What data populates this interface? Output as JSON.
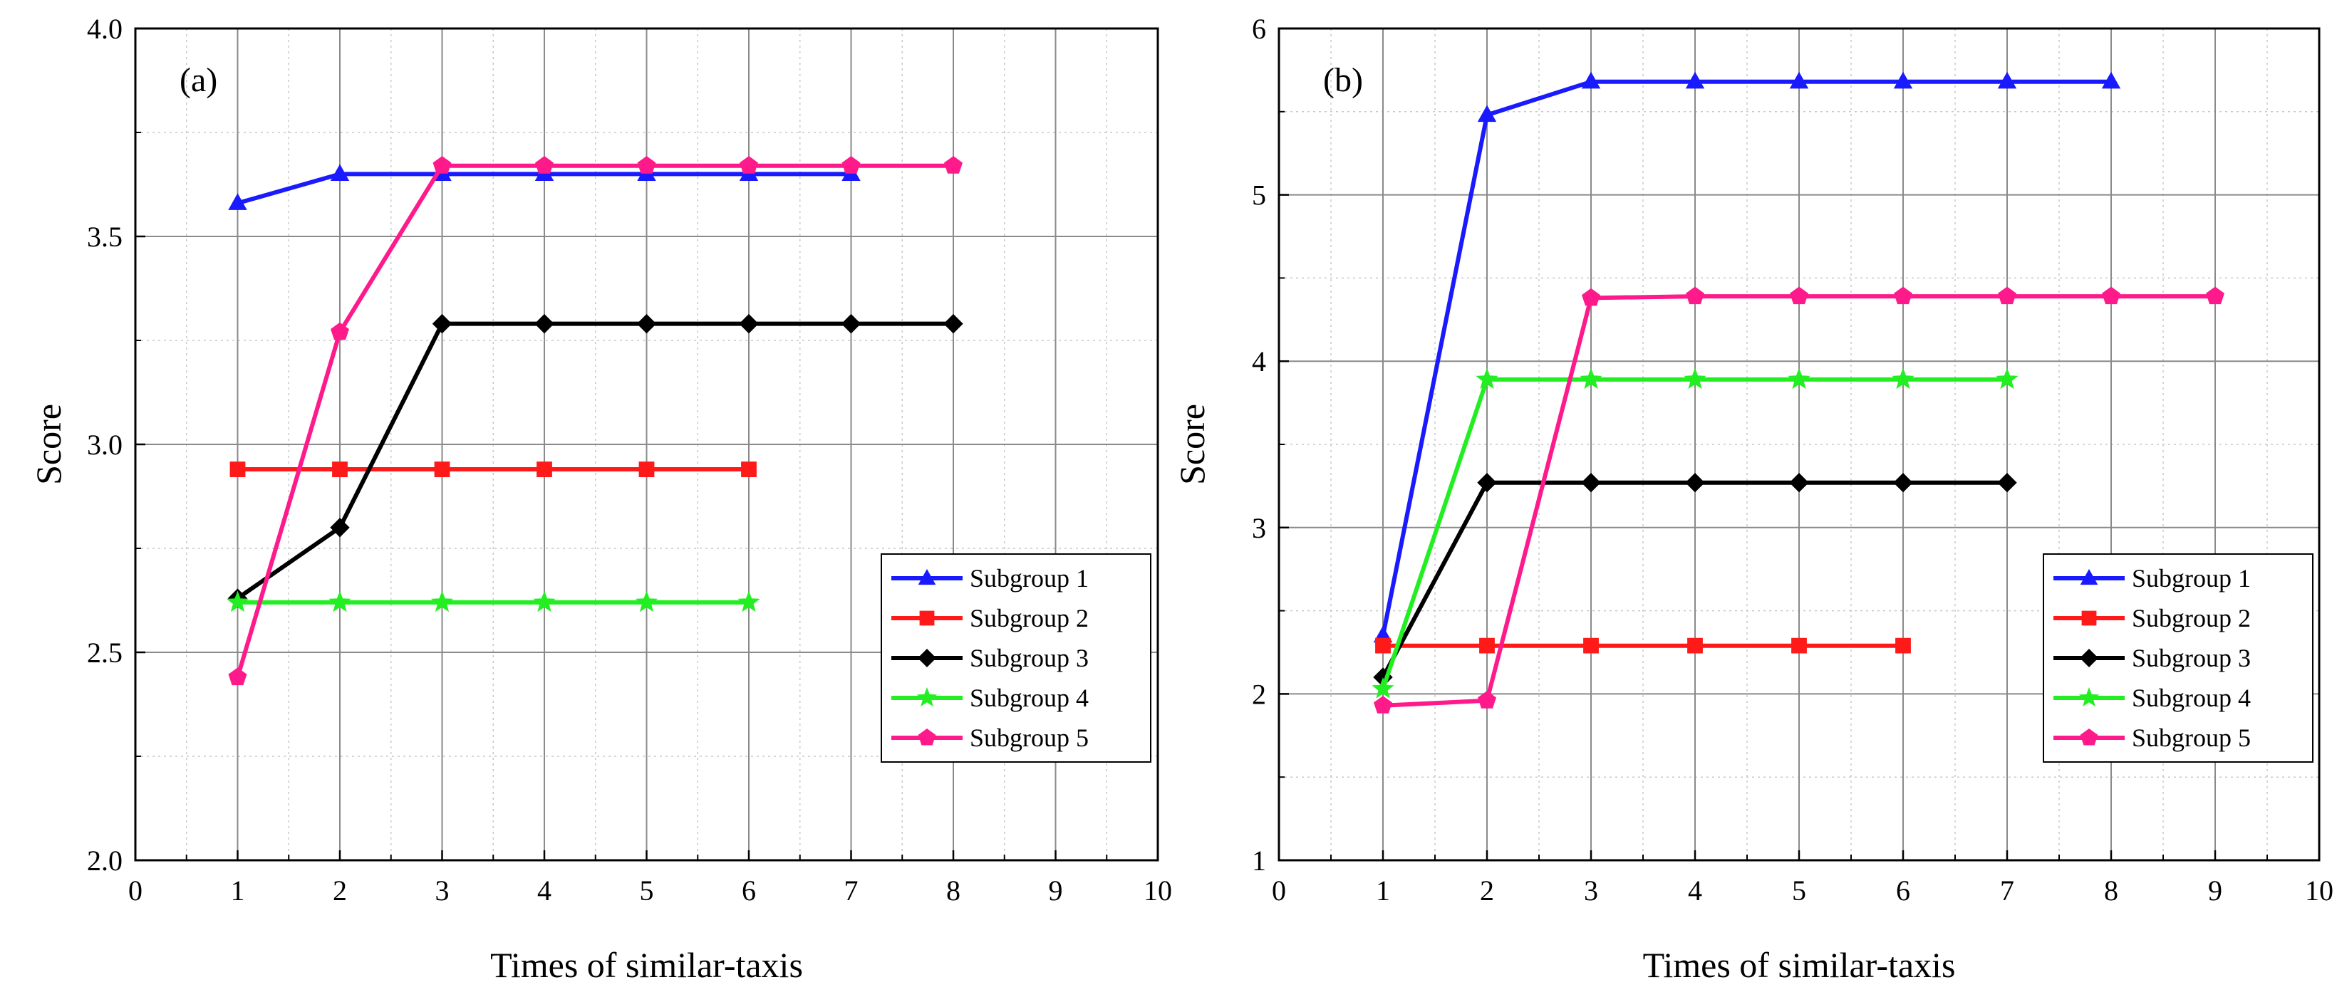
{
  "chart_data": [
    {
      "type": "line",
      "panel_label": "(a)",
      "xlabel": "Times of similar-taxis",
      "ylabel": "Score",
      "xlim": [
        0,
        10
      ],
      "ylim": [
        2.0,
        4.0
      ],
      "xticks": [
        0,
        1,
        2,
        3,
        4,
        5,
        6,
        7,
        8,
        9,
        10
      ],
      "yticks": [
        2.0,
        2.5,
        3.0,
        3.5,
        4.0
      ],
      "ytick_labels": [
        "2.0",
        "2.5",
        "3.0",
        "3.5",
        "4.0"
      ],
      "grid": true,
      "legend_position": "bottom-right",
      "series": [
        {
          "name": "Subgroup 1",
          "color": "#1a1aff",
          "marker": "triangle",
          "x": [
            1,
            2,
            3,
            4,
            5,
            6,
            7
          ],
          "values": [
            3.58,
            3.65,
            3.65,
            3.65,
            3.65,
            3.65,
            3.65
          ]
        },
        {
          "name": "Subgroup 2",
          "color": "#ff1a1a",
          "marker": "square",
          "x": [
            1,
            2,
            3,
            4,
            5,
            6
          ],
          "values": [
            2.94,
            2.94,
            2.94,
            2.94,
            2.94,
            2.94
          ]
        },
        {
          "name": "Subgroup 3",
          "color": "#000000",
          "marker": "diamond",
          "x": [
            1,
            2,
            3,
            4,
            5,
            6,
            7,
            8
          ],
          "values": [
            2.63,
            2.8,
            3.29,
            3.29,
            3.29,
            3.29,
            3.29,
            3.29
          ]
        },
        {
          "name": "Subgroup 4",
          "color": "#22ee22",
          "marker": "star",
          "x": [
            1,
            2,
            3,
            4,
            5,
            6
          ],
          "values": [
            2.62,
            2.62,
            2.62,
            2.62,
            2.62,
            2.62
          ]
        },
        {
          "name": "Subgroup 5",
          "color": "#ff1a8c",
          "marker": "pentagon",
          "x": [
            1,
            2,
            3,
            4,
            5,
            6,
            7,
            8
          ],
          "values": [
            2.44,
            3.27,
            3.67,
            3.67,
            3.67,
            3.67,
            3.67,
            3.67
          ]
        }
      ]
    },
    {
      "type": "line",
      "panel_label": "(b)",
      "xlabel": "Times of similar-taxis",
      "ylabel": "Score",
      "xlim": [
        0,
        10
      ],
      "ylim": [
        1,
        6
      ],
      "xticks": [
        0,
        1,
        2,
        3,
        4,
        5,
        6,
        7,
        8,
        9,
        10
      ],
      "yticks": [
        1,
        2,
        3,
        4,
        5,
        6
      ],
      "ytick_labels": [
        "1",
        "2",
        "3",
        "4",
        "5",
        "6"
      ],
      "grid": true,
      "legend_position": "bottom-right",
      "series": [
        {
          "name": "Subgroup 1",
          "color": "#1a1aff",
          "marker": "triangle",
          "x": [
            1,
            2,
            3,
            4,
            5,
            6,
            7,
            8
          ],
          "values": [
            2.35,
            5.48,
            5.68,
            5.68,
            5.68,
            5.68,
            5.68,
            5.68
          ]
        },
        {
          "name": "Subgroup 2",
          "color": "#ff1a1a",
          "marker": "square",
          "x": [
            1,
            2,
            3,
            4,
            5,
            6
          ],
          "values": [
            2.29,
            2.29,
            2.29,
            2.29,
            2.29,
            2.29
          ]
        },
        {
          "name": "Subgroup 3",
          "color": "#000000",
          "marker": "diamond",
          "x": [
            1,
            2,
            3,
            4,
            5,
            6,
            7
          ],
          "values": [
            2.1,
            3.27,
            3.27,
            3.27,
            3.27,
            3.27,
            3.27
          ]
        },
        {
          "name": "Subgroup 4",
          "color": "#22ee22",
          "marker": "star",
          "x": [
            1,
            2,
            3,
            4,
            5,
            6,
            7
          ],
          "values": [
            2.03,
            3.89,
            3.89,
            3.89,
            3.89,
            3.89,
            3.89
          ]
        },
        {
          "name": "Subgroup 5",
          "color": "#ff1a8c",
          "marker": "pentagon",
          "x": [
            1,
            2,
            3,
            4,
            5,
            6,
            7,
            8,
            9
          ],
          "values": [
            1.93,
            1.96,
            4.38,
            4.39,
            4.39,
            4.39,
            4.39,
            4.39,
            4.39
          ]
        }
      ]
    }
  ]
}
